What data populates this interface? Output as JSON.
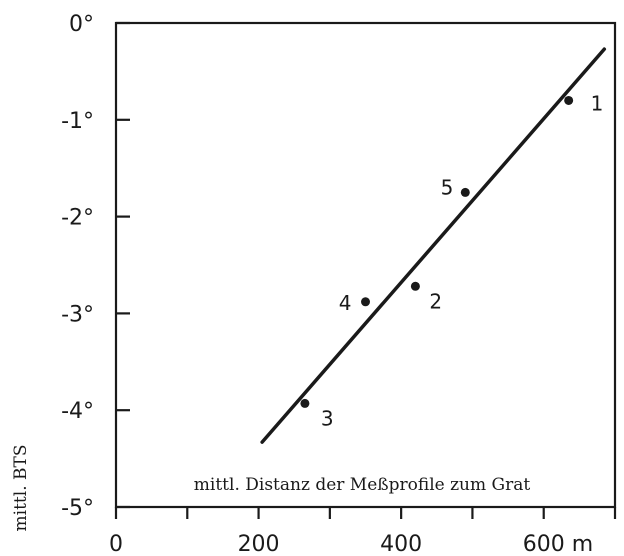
{
  "chart_data": {
    "type": "scatter",
    "title": "",
    "xlabel": "mittl. Distanz der Meßprofile zum Grat",
    "ylabel": "mittl. BTS",
    "xlim": [
      0,
      700
    ],
    "ylim": [
      -5,
      0
    ],
    "x_ticks": [
      0,
      100,
      200,
      300,
      400,
      500,
      600,
      700
    ],
    "x_tick_labels": [
      "0",
      "",
      "200",
      "",
      "400",
      "",
      "600 m",
      ""
    ],
    "y_ticks": [
      0,
      -1,
      -2,
      -3,
      -4,
      -5
    ],
    "y_tick_labels": [
      "0°",
      "-1°",
      "-2°",
      "-3°",
      "-4°",
      "-5°"
    ],
    "grid": false,
    "points": [
      {
        "label": "1",
        "x": 635,
        "y": -0.8
      },
      {
        "label": "2",
        "x": 420,
        "y": -2.72
      },
      {
        "label": "3",
        "x": 265,
        "y": -3.93
      },
      {
        "label": "4",
        "x": 350,
        "y": -2.88
      },
      {
        "label": "5",
        "x": 490,
        "y": -1.75
      }
    ],
    "regression_line": {
      "x": [
        205,
        685
      ],
      "y": [
        -4.33,
        -0.27
      ]
    }
  }
}
